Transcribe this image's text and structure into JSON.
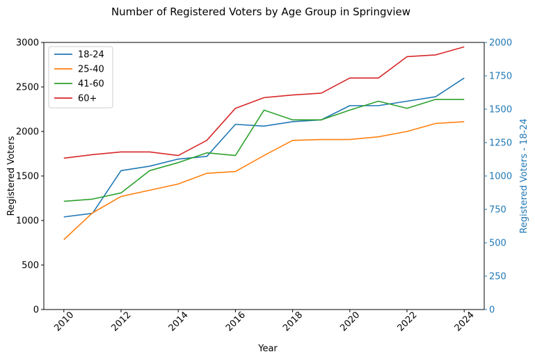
{
  "chart_data": {
    "type": "line",
    "title": "Number of Registered Voters by Age Group in Springview",
    "xlabel": "Year",
    "ylabel": "Registered Voters",
    "ylabel_right": "Registered Voters - 18-24",
    "x": [
      2010,
      2011,
      2012,
      2013,
      2014,
      2015,
      2016,
      2017,
      2018,
      2019,
      2020,
      2021,
      2022,
      2023,
      2024
    ],
    "xticks": [
      "2010",
      "2012",
      "2014",
      "2016",
      "2018",
      "2020",
      "2022",
      "2024"
    ],
    "xlim": [
      2009.3,
      2024.7
    ],
    "ylim": [
      0,
      3000
    ],
    "yticks": [
      "0",
      "500",
      "1000",
      "1500",
      "2000",
      "2500",
      "3000"
    ],
    "ylim_right": [
      0,
      2000
    ],
    "yticks_right": [
      "0",
      "250",
      "500",
      "750",
      "1000",
      "1250",
      "1500",
      "1750",
      "2000"
    ],
    "grid": false,
    "legend_position": "top-left",
    "right_axis_color": "#1f77b4",
    "series": [
      {
        "name": "18-24",
        "color": "#1f77b4",
        "values": [
          1040,
          1080,
          1560,
          1610,
          1690,
          1720,
          2080,
          2060,
          2110,
          2130,
          2290,
          2290,
          2340,
          2390,
          2600
        ]
      },
      {
        "name": "25-40",
        "color": "#ff7f0e",
        "values": [
          785,
          1085,
          1270,
          1340,
          1410,
          1530,
          1550,
          1730,
          1900,
          1910,
          1910,
          1940,
          2000,
          2090,
          2110
        ]
      },
      {
        "name": "41-60",
        "color": "#2ca02c",
        "values": [
          1215,
          1240,
          1310,
          1560,
          1650,
          1760,
          1730,
          2240,
          2130,
          2130,
          2240,
          2340,
          2260,
          2360,
          2360
        ]
      },
      {
        "name": "60+",
        "color": "#d62728",
        "values": [
          1700,
          1740,
          1770,
          1770,
          1730,
          1900,
          2260,
          2380,
          2410,
          2430,
          2600,
          2600,
          2840,
          2860,
          2950
        ]
      }
    ]
  }
}
